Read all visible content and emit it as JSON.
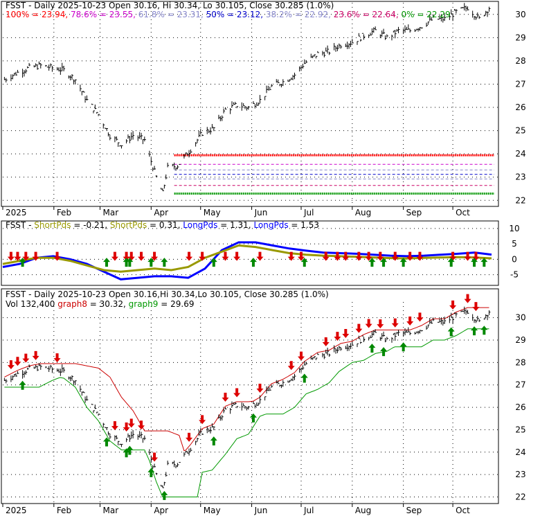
{
  "symbol": "FSST",
  "panel1": {
    "title_line": "FSST - Daily 2025-10-23 Open 30.16, Hi 30.34, Lo 30.105, Close 30.285 (1.0%)",
    "fib_labels": [
      {
        "text": "100% = 23.94,",
        "color": "#ff0000"
      },
      {
        "text": "78.6% = 23.55,",
        "color": "#cc00cc"
      },
      {
        "text": "61.8% = 23.31,",
        "color": "#8888cc"
      },
      {
        "text": "50% = 23.12,",
        "color": "#0000cc"
      },
      {
        "text": "38.2% = 22.92,",
        "color": "#8888cc"
      },
      {
        "text": "23.6% = 22.64,",
        "color": "#cc0066"
      },
      {
        "text": "0% = 22.29",
        "color": "#009900"
      }
    ],
    "y_ticks": [
      "30",
      "29",
      "28",
      "27",
      "26",
      "25",
      "24",
      "23",
      "22"
    ],
    "x_ticks": [
      "2025",
      "Feb",
      "Mar",
      "Apr",
      "May",
      "Jun",
      "Jul",
      "Aug",
      "Sep",
      "Oct"
    ]
  },
  "panel2": {
    "title_parts": [
      {
        "text": "FSST - ",
        "color": "#000000"
      },
      {
        "text": "ShortPds",
        "color": "#999900"
      },
      {
        "text": " = -0.21, ",
        "color": "#000000"
      },
      {
        "text": "ShortPds",
        "color": "#999900"
      },
      {
        "text": " = 0.31, ",
        "color": "#000000"
      },
      {
        "text": "LongPds",
        "color": "#0000ff"
      },
      {
        "text": " = 1.31, ",
        "color": "#000000"
      },
      {
        "text": "LongPds",
        "color": "#0000ff"
      },
      {
        "text": " = 1.53",
        "color": "#000000"
      }
    ],
    "y_ticks": [
      "10",
      "5",
      "0",
      "-5"
    ]
  },
  "panel3": {
    "title_line": "FSST - Daily 2025-10-23 Open 30.16,Hi 30.34,Lo 30.105, Close 30.285 (1.0%)",
    "sub_parts": [
      {
        "text": "Vol 132,400 ",
        "color": "#000000"
      },
      {
        "text": "graph8",
        "color": "#cc0000"
      },
      {
        "text": " = 30.32, ",
        "color": "#000000"
      },
      {
        "text": "graph9",
        "color": "#009900"
      },
      {
        "text": " = 29.69",
        "color": "#000000"
      }
    ],
    "y_ticks": [
      "30",
      "29",
      "28",
      "27",
      "26",
      "25",
      "24",
      "23",
      "22"
    ],
    "x_ticks": [
      "2025",
      "Feb",
      "Mar",
      "Apr",
      "May",
      "Jun",
      "Jul",
      "Aug",
      "Sep",
      "Oct"
    ]
  },
  "chart_data": {
    "type": "line",
    "subtype": "ohlc-stock-chart",
    "symbol": "FSST",
    "x_months": [
      "2025",
      "Feb",
      "Mar",
      "Apr",
      "May",
      "Jun",
      "Jul",
      "Aug",
      "Sep",
      "Oct"
    ],
    "last_bar": {
      "date": "2025-10-23",
      "open": 30.16,
      "high": 30.34,
      "low": 30.105,
      "close": 30.285,
      "change_pct": 1.0,
      "volume": 132400
    },
    "price_series": {
      "name": "Close",
      "points": [
        [
          "2025-01-02",
          27.2
        ],
        [
          "2025-01-10",
          27.5
        ],
        [
          "2025-01-17",
          27.7
        ],
        [
          "2025-01-24",
          27.8
        ],
        [
          "2025-01-31",
          27.7
        ],
        [
          "2025-02-07",
          27.6
        ],
        [
          "2025-02-14",
          27.2
        ],
        [
          "2025-02-21",
          26.3
        ],
        [
          "2025-02-28",
          25.7
        ],
        [
          "2025-03-07",
          24.8
        ],
        [
          "2025-03-14",
          24.4
        ],
        [
          "2025-03-21",
          24.8
        ],
        [
          "2025-03-28",
          24.6
        ],
        [
          "2025-04-04",
          23.0
        ],
        [
          "2025-04-08",
          22.3
        ],
        [
          "2025-04-11",
          23.4
        ],
        [
          "2025-04-17",
          23.5
        ],
        [
          "2025-04-25",
          24.2
        ],
        [
          "2025-05-02",
          24.9
        ],
        [
          "2025-05-09",
          25.1
        ],
        [
          "2025-05-16",
          25.9
        ],
        [
          "2025-05-23",
          26.1
        ],
        [
          "2025-05-30",
          26.0
        ],
        [
          "2025-06-06",
          26.3
        ],
        [
          "2025-06-13",
          26.9
        ],
        [
          "2025-06-20",
          27.1
        ],
        [
          "2025-06-27",
          27.4
        ],
        [
          "2025-07-03",
          27.9
        ],
        [
          "2025-07-11",
          28.3
        ],
        [
          "2025-07-18",
          28.4
        ],
        [
          "2025-07-25",
          28.7
        ],
        [
          "2025-08-01",
          28.8
        ],
        [
          "2025-08-08",
          29.1
        ],
        [
          "2025-08-15",
          29.3
        ],
        [
          "2025-08-22",
          29.0
        ],
        [
          "2025-08-29",
          29.3
        ],
        [
          "2025-09-05",
          29.3
        ],
        [
          "2025-09-12",
          29.5
        ],
        [
          "2025-09-19",
          29.8
        ],
        [
          "2025-09-26",
          29.8
        ],
        [
          "2025-10-03",
          30.1
        ],
        [
          "2025-10-10",
          30.3
        ],
        [
          "2025-10-17",
          29.8
        ],
        [
          "2025-10-23",
          30.285
        ]
      ],
      "ylim": [
        21.8,
        30.5
      ]
    },
    "fibonacci_levels": [
      {
        "label": "100%",
        "value": 23.94,
        "color": "#ff0000"
      },
      {
        "label": "78.6%",
        "value": 23.55,
        "color": "#cc00cc"
      },
      {
        "label": "61.8%",
        "value": 23.31,
        "color": "#8888cc"
      },
      {
        "label": "50%",
        "value": 23.12,
        "color": "#0000cc"
      },
      {
        "label": "38.2%",
        "value": 22.92,
        "color": "#8888cc"
      },
      {
        "label": "23.6%",
        "value": 22.64,
        "color": "#cc0066"
      },
      {
        "label": "0%",
        "value": 22.29,
        "color": "#009900"
      }
    ],
    "indicator_values": {
      "ShortPds_1": -0.21,
      "ShortPds_2": 0.31,
      "LongPds_1": 1.31,
      "LongPds_2": 1.53
    },
    "oscillator_series": [
      {
        "name": "LongPds",
        "color": "#0000ff",
        "values": [
          -2.5,
          -1.5,
          0.5,
          1.0,
          0.0,
          -1.5,
          -4.0,
          -6.5,
          -6.0,
          -5.5,
          -5.5,
          -6.0,
          -3.0,
          3.0,
          5.5,
          5.5,
          4.5,
          3.5,
          2.8,
          2.2,
          2.0,
          1.8,
          1.5,
          1.2,
          1.0,
          1.2,
          1.5,
          1.8,
          2.2,
          1.53
        ]
      },
      {
        "name": "ShortPds",
        "color": "#999900",
        "values": [
          -1.5,
          -0.5,
          0.5,
          0.5,
          -0.5,
          -2.0,
          -3.5,
          -4.0,
          -3.5,
          -3.0,
          -3.5,
          -2.5,
          0.5,
          2.5,
          4.5,
          4.0,
          3.0,
          2.0,
          1.5,
          1.2,
          1.0,
          0.8,
          0.6,
          0.4,
          0.3,
          0.5,
          0.6,
          0.7,
          0.6,
          0.31
        ]
      }
    ],
    "oscillator_ylim": [
      -8,
      12
    ],
    "channel_lines": {
      "graph8": {
        "value": 30.32,
        "color": "#cc0000"
      },
      "graph9": {
        "value": 29.69,
        "color": "#009900"
      }
    },
    "down_arrow_dates": [
      "2025-01-06",
      "2025-01-10",
      "2025-01-15",
      "2025-01-21",
      "2025-02-03",
      "2025-03-10",
      "2025-03-17",
      "2025-03-20",
      "2025-03-26",
      "2025-04-03",
      "2025-04-24",
      "2025-05-02",
      "2025-05-16",
      "2025-05-23",
      "2025-06-06",
      "2025-06-25",
      "2025-07-01",
      "2025-07-16",
      "2025-07-23",
      "2025-07-28",
      "2025-08-05",
      "2025-08-11",
      "2025-08-18",
      "2025-08-27",
      "2025-09-05",
      "2025-09-11",
      "2025-10-01",
      "2025-10-10",
      "2025-10-15"
    ],
    "up_arrow_dates": [
      "2025-01-13",
      "2025-03-05",
      "2025-03-17",
      "2025-03-19",
      "2025-04-01",
      "2025-04-09",
      "2025-05-09",
      "2025-06-02",
      "2025-07-03",
      "2025-08-13",
      "2025-08-20",
      "2025-09-01",
      "2025-09-30",
      "2025-10-14",
      "2025-10-20"
    ]
  }
}
